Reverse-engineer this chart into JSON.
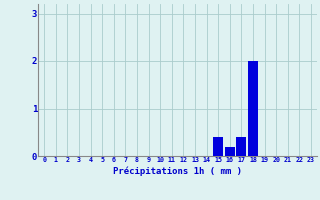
{
  "hours": [
    0,
    1,
    2,
    3,
    4,
    5,
    6,
    7,
    8,
    9,
    10,
    11,
    12,
    13,
    14,
    15,
    16,
    17,
    18,
    19,
    20,
    21,
    22,
    23
  ],
  "values": [
    0,
    0,
    0,
    0,
    0,
    0,
    0,
    0,
    0,
    0,
    0,
    0,
    0,
    0,
    0,
    0.4,
    0.2,
    0.4,
    2.0,
    0,
    0,
    0,
    0,
    0
  ],
  "bar_color": "#0000dd",
  "background_color": "#dff2f2",
  "grid_color": "#aacccc",
  "xlabel": "Précipitations 1h ( mm )",
  "xlabel_color": "#0000cc",
  "tick_color": "#0000cc",
  "ylim": [
    0,
    3.2
  ],
  "yticks": [
    0,
    1,
    2,
    3
  ],
  "xlim": [
    -0.5,
    23.5
  ]
}
